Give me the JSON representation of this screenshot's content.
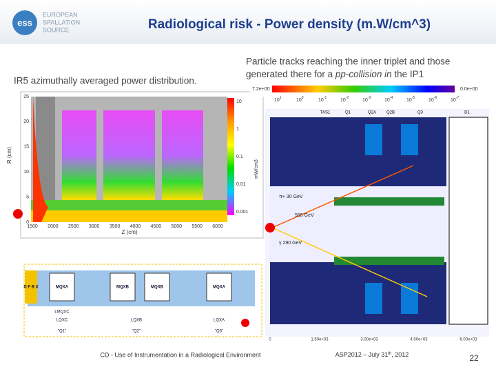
{
  "header": {
    "logo_mark": "ess",
    "logo_text": [
      "EUROPEAN",
      "SPALLATION",
      "SOURCE"
    ],
    "title": "Radiological risk - Power density (m.W/cm^3)"
  },
  "left": {
    "caption": "IR5 azimuthally averaged power distribution.",
    "plot": {
      "ylabel": "R (cm)",
      "xlabel": "Z (cm)",
      "yticks": [
        "0",
        "5",
        "10",
        "15",
        "20",
        "25"
      ],
      "xticks": [
        "1500",
        "2000",
        "2500",
        "3000",
        "3500",
        "4000",
        "4500",
        "5000",
        "5500",
        "6000"
      ],
      "colorbar_ticks": [
        "10",
        "1",
        "0.1",
        "0.01",
        "0.001"
      ],
      "colorbar_label": "mW/cm3"
    },
    "layout": {
      "top_row": [
        "D F B X",
        "MQXA",
        "MQXB",
        "MQXB",
        "MQXA"
      ],
      "labels": [
        "LMQXC",
        "LQXC",
        "LQXB",
        "LQXA"
      ],
      "names": [
        "\"Q1\"",
        "\"Q2\"",
        "\"Q3\""
      ]
    }
  },
  "right": {
    "caption_line1": "Particle tracks reaching the inner triplet and those",
    "caption_line2": [
      "generated there for a ",
      "pp-collision in",
      " the IP1"
    ],
    "scale_max": "7.2e+00",
    "scale_min": "0.0e+00",
    "scale_base": "10",
    "scale_exponents": [
      "1",
      "0",
      "-1",
      "-2",
      "-3",
      "-4",
      "-5",
      "-6",
      "-7"
    ],
    "elements": [
      "TAS1",
      "Q1",
      "Q2A",
      "Q2B",
      "Q3",
      "D1"
    ],
    "particles": [
      "π+ 30 GeV",
      "565 GeV",
      "γ 290 GeV"
    ],
    "xticks": [
      "0",
      "1.50e+03",
      "3.00e+03",
      "4.50e+03",
      "6.00e+03"
    ]
  },
  "footer": {
    "left": "CD - Use of Instrumentation in a Radiological Environment",
    "date": [
      "ASP2012 – July 31",
      "th",
      ", 2012"
    ],
    "page": "22"
  }
}
